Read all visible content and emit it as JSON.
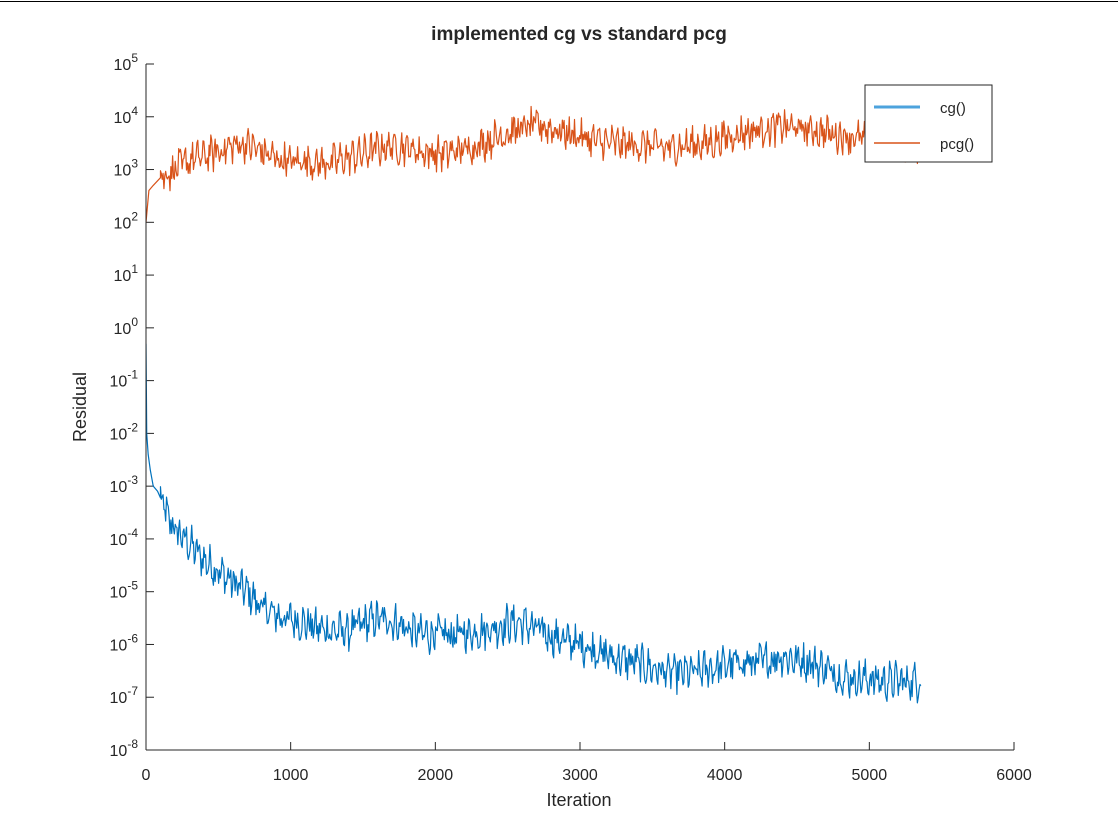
{
  "chart_data": {
    "type": "line",
    "title": "implemented cg vs standard pcg",
    "xlabel": "Iteration",
    "ylabel": "Residual",
    "xlim": [
      0,
      6000
    ],
    "ylim": [
      1e-08,
      100000.0
    ],
    "yscale": "log",
    "grid": false,
    "legend_position": "top-right",
    "x_ticks": [
      "0",
      "1000",
      "2000",
      "3000",
      "4000",
      "5000",
      "6000"
    ],
    "y_ticks": [
      {
        "base": "10",
        "exp": "5"
      },
      {
        "base": "10",
        "exp": "4"
      },
      {
        "base": "10",
        "exp": "3"
      },
      {
        "base": "10",
        "exp": "2"
      },
      {
        "base": "10",
        "exp": "1"
      },
      {
        "base": "10",
        "exp": "0"
      },
      {
        "base": "10",
        "exp": "-1"
      },
      {
        "base": "10",
        "exp": "-2"
      },
      {
        "base": "10",
        "exp": "-3"
      },
      {
        "base": "10",
        "exp": "-4"
      },
      {
        "base": "10",
        "exp": "-5"
      },
      {
        "base": "10",
        "exp": "-6"
      },
      {
        "base": "10",
        "exp": "-7"
      },
      {
        "base": "10",
        "exp": "-8"
      }
    ],
    "series": [
      {
        "name": "cg()",
        "color": "#0072BD",
        "x": [
          0,
          5,
          15,
          30,
          50,
          80,
          100,
          150,
          200,
          300,
          400,
          500,
          600,
          700,
          800,
          900,
          1000,
          1100,
          1200,
          1300,
          1400,
          1500,
          1600,
          1700,
          1800,
          1900,
          2000,
          2100,
          2200,
          2300,
          2400,
          2500,
          2600,
          2700,
          2800,
          2900,
          3000,
          3100,
          3200,
          3300,
          3400,
          3500,
          3600,
          3700,
          3800,
          3900,
          4000,
          4100,
          4200,
          4300,
          4400,
          4500,
          4600,
          4700,
          4800,
          4900,
          5000,
          5100,
          5200,
          5300,
          5360
        ],
        "values": [
          0.5,
          0.01,
          0.004,
          0.002,
          0.001,
          0.0008,
          0.0006,
          0.00025,
          0.00015,
          8e-05,
          4e-05,
          2.5e-05,
          1.5e-05,
          1e-05,
          5e-06,
          3.5e-06,
          3e-06,
          2.5e-06,
          2e-06,
          1.8e-06,
          1.8e-06,
          2.5e-06,
          3e-06,
          2.8e-06,
          2e-06,
          1.6e-06,
          1.6e-06,
          1.5e-06,
          1.6e-06,
          1.8e-06,
          2e-06,
          2.5e-06,
          2.5e-06,
          2e-06,
          1.4e-06,
          1.2e-06,
          1e-06,
          8e-07,
          6e-07,
          5e-07,
          4.5e-07,
          3.5e-07,
          3e-07,
          2.8e-07,
          3e-07,
          3.5e-07,
          4e-07,
          4.5e-07,
          4.5e-07,
          5e-07,
          6e-07,
          5e-07,
          4.5e-07,
          3.5e-07,
          2.5e-07,
          2.2e-07,
          2.2e-07,
          2e-07,
          2e-07,
          2e-07,
          2e-07
        ]
      },
      {
        "name": "pcg()",
        "color": "#D95319",
        "x": [
          0,
          20,
          50,
          100,
          200,
          300,
          400,
          500,
          600,
          700,
          800,
          900,
          1000,
          1100,
          1200,
          1300,
          1400,
          1500,
          1600,
          1700,
          1800,
          1900,
          2000,
          2100,
          2200,
          2300,
          2400,
          2500,
          2600,
          2700,
          2800,
          2900,
          3000,
          3100,
          3200,
          3300,
          3400,
          3500,
          3600,
          3700,
          3800,
          3900,
          4000,
          4100,
          4200,
          4300,
          4400,
          4500,
          4600,
          4700,
          4800,
          4900,
          5000,
          5100,
          5200,
          5300,
          5360
        ],
        "values": [
          100,
          400,
          500,
          700,
          1000,
          1500,
          1800,
          2200,
          2800,
          3000,
          2200,
          1600,
          1400,
          1500,
          1300,
          1400,
          1700,
          2000,
          2500,
          2800,
          2600,
          2200,
          2000,
          2100,
          2400,
          3000,
          3800,
          5000,
          6000,
          7000,
          6000,
          5000,
          4200,
          3500,
          3200,
          3000,
          2900,
          2800,
          2500,
          2800,
          3000,
          3200,
          4000,
          4800,
          5500,
          6000,
          6500,
          6000,
          5500,
          5000,
          4500,
          4000,
          3600,
          3500,
          3200,
          3200,
          3000
        ]
      }
    ]
  }
}
